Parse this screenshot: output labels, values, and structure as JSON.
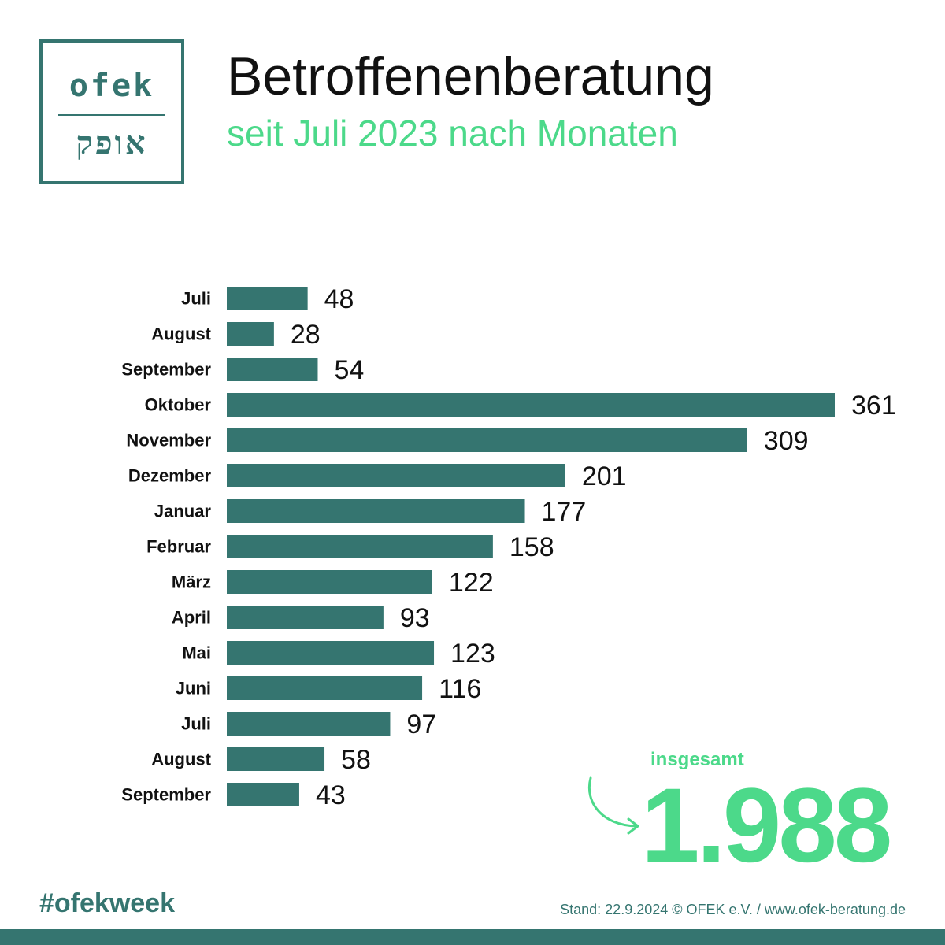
{
  "logo": {
    "top": "ofek",
    "bottom": "אופק"
  },
  "header": {
    "title": "Betroffenenberatung",
    "subtitle": "seit Juli 2023 nach Monaten"
  },
  "chart_data": {
    "type": "bar",
    "orientation": "horizontal",
    "title": "Betroffenenberatung",
    "subtitle": "seit Juli 2023 nach Monaten",
    "categories": [
      "Juli",
      "August",
      "September",
      "Oktober",
      "November",
      "Dezember",
      "Januar",
      "Februar",
      "März",
      "April",
      "Mai",
      "Juni",
      "Juli",
      "August",
      "September"
    ],
    "values": [
      48,
      28,
      54,
      361,
      309,
      201,
      177,
      158,
      122,
      93,
      123,
      116,
      97,
      58,
      43
    ],
    "xlabel": "",
    "ylabel": "",
    "xlim": [
      0,
      361
    ],
    "grid": false,
    "legend": "none",
    "data_labels": true
  },
  "total": {
    "label": "insgesamt",
    "value": "1.988"
  },
  "footer": {
    "hashtag": "#ofekweek",
    "note": "Stand: 22.9.2024 © OFEK e.V. / www.ofek-beratung.de"
  },
  "colors": {
    "bar": "#357570",
    "accent": "#4cd98a",
    "text": "#111111",
    "brand": "#357570"
  },
  "icons": {
    "total_arrow": "curved-arrow-icon"
  }
}
